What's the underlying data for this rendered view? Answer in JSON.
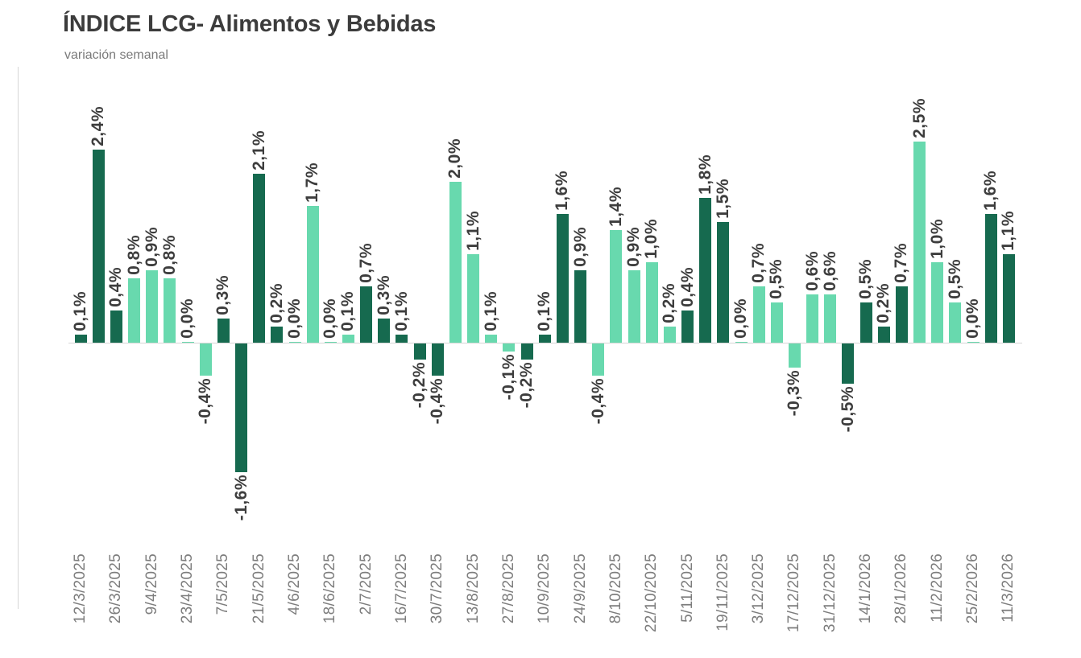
{
  "chart_data": {
    "type": "bar",
    "title": "ÍNDICE LCG- Alimentos y Bebidas",
    "subtitle": "variación semanal",
    "value_suffix": "%",
    "decimal_separator": ",",
    "legend": "none",
    "grid": "off",
    "x_tick_rotation": 90,
    "value_label_rotation": 90,
    "ylim": [
      -1.6,
      2.5
    ],
    "colors": {
      "dark": "#166a4f",
      "light": "#68d9ae"
    },
    "axis_colors": {
      "baseline": "#d6d6d6",
      "left_axis_line": "#d6d6d6"
    },
    "bars": [
      {
        "value": 0.1,
        "label": "0,1%",
        "color": "dark",
        "tick": "12/3/2025"
      },
      {
        "value": 2.4,
        "label": "2,4%",
        "color": "dark"
      },
      {
        "value": 0.4,
        "label": "0,4%",
        "color": "dark",
        "tick": "26/3/2025"
      },
      {
        "value": 0.8,
        "label": "0,8%",
        "color": "light"
      },
      {
        "value": 0.9,
        "label": "0,9%",
        "color": "light",
        "tick": "9/4/2025"
      },
      {
        "value": 0.8,
        "label": "0,8%",
        "color": "light"
      },
      {
        "value": 0.0,
        "label": "0,0%",
        "color": "light",
        "tick": "23/4/2025"
      },
      {
        "value": -0.4,
        "label": "-0,4%",
        "color": "light"
      },
      {
        "value": 0.3,
        "label": "0,3%",
        "color": "dark",
        "tick": "7/5/2025"
      },
      {
        "value": -1.6,
        "label": "-1,6%",
        "color": "dark"
      },
      {
        "value": 2.1,
        "label": "2,1%",
        "color": "dark",
        "tick": "21/5/2025"
      },
      {
        "value": 0.2,
        "label": "0,2%",
        "color": "dark"
      },
      {
        "value": 0.0,
        "label": "0,0%",
        "color": "light",
        "tick": "4/6/2025"
      },
      {
        "value": 1.7,
        "label": "1,7%",
        "color": "light"
      },
      {
        "value": 0.0,
        "label": "0,0%",
        "color": "light",
        "tick": "18/6/2025"
      },
      {
        "value": 0.1,
        "label": "0,1%",
        "color": "light"
      },
      {
        "value": 0.7,
        "label": "0,7%",
        "color": "dark",
        "tick": "2/7/2025"
      },
      {
        "value": 0.3,
        "label": "0,3%",
        "color": "dark"
      },
      {
        "value": 0.1,
        "label": "0,1%",
        "color": "dark",
        "tick": "16/7/2025"
      },
      {
        "value": -0.2,
        "label": "-0,2%",
        "color": "dark"
      },
      {
        "value": -0.4,
        "label": "-0,4%",
        "color": "dark",
        "tick": "30/7/2025"
      },
      {
        "value": 2.0,
        "label": "2,0%",
        "color": "light"
      },
      {
        "value": 1.1,
        "label": "1,1%",
        "color": "light",
        "tick": "13/8/2025"
      },
      {
        "value": 0.1,
        "label": "0,1%",
        "color": "light"
      },
      {
        "value": -0.1,
        "label": "-0,1%",
        "color": "light",
        "tick": "27/8/2025"
      },
      {
        "value": -0.2,
        "label": "-0,2%",
        "color": "dark"
      },
      {
        "value": 0.1,
        "label": "0,1%",
        "color": "dark",
        "tick": "10/9/2025"
      },
      {
        "value": 1.6,
        "label": "1,6%",
        "color": "dark"
      },
      {
        "value": 0.9,
        "label": "0,9%",
        "color": "dark",
        "tick": "24/9/2025"
      },
      {
        "value": -0.4,
        "label": "-0,4%",
        "color": "light"
      },
      {
        "value": 1.4,
        "label": "1,4%",
        "color": "light",
        "tick": "8/10/2025"
      },
      {
        "value": 0.9,
        "label": "0,9%",
        "color": "light"
      },
      {
        "value": 1.0,
        "label": "1,0%",
        "color": "light",
        "tick": "22/10/2025"
      },
      {
        "value": 0.2,
        "label": "0,2%",
        "color": "light"
      },
      {
        "value": 0.4,
        "label": "0,4%",
        "color": "dark",
        "tick": "5/11/2025"
      },
      {
        "value": 1.8,
        "label": "1,8%",
        "color": "dark"
      },
      {
        "value": 1.5,
        "label": "1,5%",
        "color": "dark",
        "tick": "19/11/2025"
      },
      {
        "value": 0.0,
        "label": "0,0%",
        "color": "light"
      },
      {
        "value": 0.7,
        "label": "0,7%",
        "color": "light",
        "tick": "3/12/2025"
      },
      {
        "value": 0.5,
        "label": "0,5%",
        "color": "light"
      },
      {
        "value": -0.3,
        "label": "-0,3%",
        "color": "light",
        "tick": "17/12/2025"
      },
      {
        "value": 0.6,
        "label": "0,6%",
        "color": "light"
      },
      {
        "value": 0.6,
        "label": "0,6%",
        "color": "light",
        "tick": "31/12/2025"
      },
      {
        "value": -0.5,
        "label": "-0,5%",
        "color": "dark"
      },
      {
        "value": 0.5,
        "label": "0,5%",
        "color": "dark",
        "tick": "14/1/2026"
      },
      {
        "value": 0.2,
        "label": "0,2%",
        "color": "dark"
      },
      {
        "value": 0.7,
        "label": "0,7%",
        "color": "dark",
        "tick": "28/1/2026"
      },
      {
        "value": 2.5,
        "label": "2,5%",
        "color": "light"
      },
      {
        "value": 1.0,
        "label": "1,0%",
        "color": "light",
        "tick": "11/2/2026"
      },
      {
        "value": 0.5,
        "label": "0,5%",
        "color": "light"
      },
      {
        "value": 0.0,
        "label": "0,0%",
        "color": "light",
        "tick": "25/2/2026"
      },
      {
        "value": 1.6,
        "label": "1,6%",
        "color": "dark"
      },
      {
        "value": 1.1,
        "label": "1,1%",
        "color": "dark",
        "tick": "11/3/2026"
      }
    ]
  }
}
